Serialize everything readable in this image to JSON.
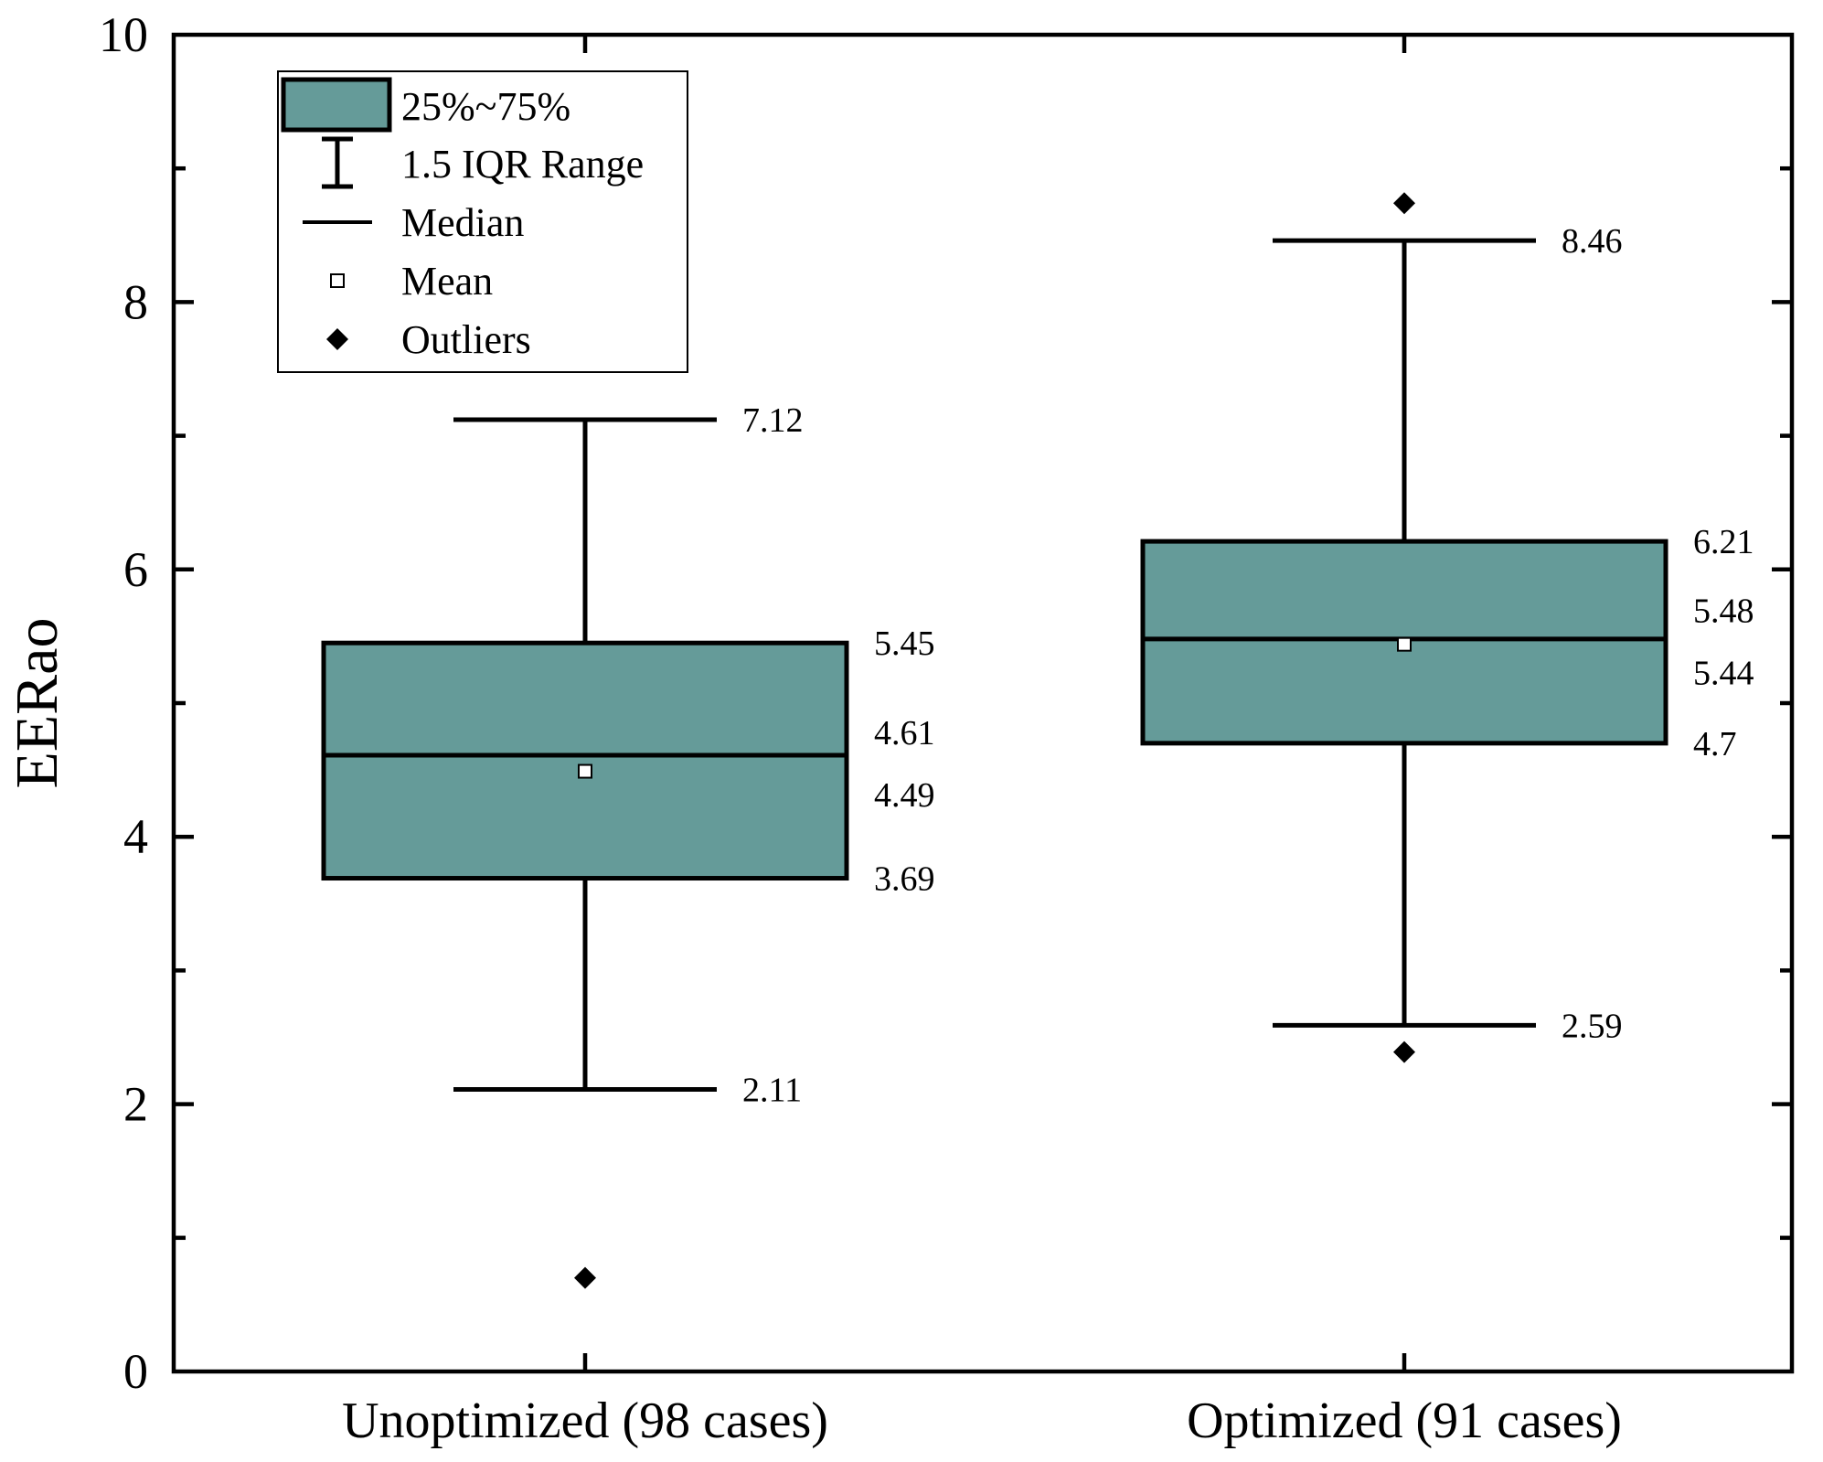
{
  "chart_data": {
    "type": "box",
    "title": "",
    "xlabel": "",
    "ylabel": "EERao",
    "ylim": [
      0,
      10
    ],
    "y_ticks": [
      "0",
      "2",
      "4",
      "6",
      "8",
      "10"
    ],
    "box_color": "#659B99",
    "legend": {
      "position": "top-left",
      "entries": [
        {
          "kind": "box",
          "label": "25%~75%"
        },
        {
          "kind": "whisker",
          "label": "1.5 IQR Range"
        },
        {
          "kind": "median",
          "label": "Median"
        },
        {
          "kind": "mean",
          "label": "Mean"
        },
        {
          "kind": "outlier",
          "label": "Outliers"
        }
      ]
    },
    "categories": [
      "Unoptimized (98 cases)",
      "Optimized (91 cases)"
    ],
    "boxes": [
      {
        "name": "Unoptimized (98 cases)",
        "whisker_low": 2.11,
        "q1": 3.69,
        "median": 4.61,
        "mean": 4.49,
        "q3": 5.45,
        "whisker_high": 7.12,
        "outliers": [
          0.7
        ],
        "labels": {
          "whisker_high": "7.12",
          "q3": "5.45",
          "median": "4.61",
          "mean": "4.49",
          "q1": "3.69",
          "whisker_low": "2.11"
        }
      },
      {
        "name": "Optimized (91 cases)",
        "whisker_low": 2.59,
        "q1": 4.7,
        "median": 5.48,
        "mean": 5.44,
        "q3": 6.21,
        "whisker_high": 8.46,
        "outliers": [
          8.74,
          2.39
        ],
        "labels": {
          "whisker_high": "8.46",
          "q3": "6.21",
          "median": "5.48",
          "mean": "5.44",
          "q1": "4.7",
          "whisker_low": "2.59"
        }
      }
    ]
  }
}
